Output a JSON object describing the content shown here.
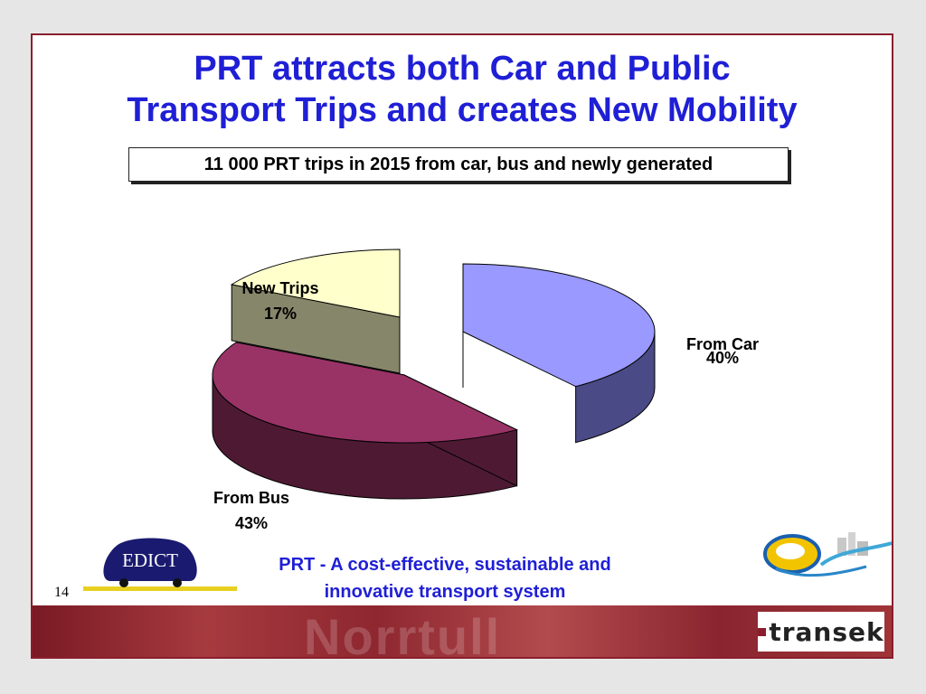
{
  "slide": {
    "title_line1": "PRT attracts both Car and Public",
    "title_line2": "Transport Trips and creates New Mobility",
    "subtitle": "11 000 PRT trips in 2015 from car, bus and newly generated",
    "footer_line1": "PRT - A cost-effective, sustainable and",
    "footer_line2": "innovative transport system",
    "slide_number": "14",
    "logo_left_text": "EDICT",
    "logo_right_brand": "transek",
    "banner_text": "Norrtull"
  },
  "colors": {
    "title": "#1f1fd6",
    "border": "#8b1e2c",
    "from_car_top": "#9999ff",
    "from_car_side": "#4a4a86",
    "from_bus_top": "#993366",
    "from_bus_side": "#4e1a33",
    "new_trips_top": "#ffffcc",
    "new_trips_side": "#86866a"
  },
  "chart_data": {
    "type": "pie",
    "style": "3d-exploded",
    "title": "11 000 PRT trips in 2015 from car, bus and newly generated",
    "slices": [
      {
        "name": "From Car",
        "value": 40,
        "label": "40%"
      },
      {
        "name": "From Bus",
        "value": 43,
        "label": "43%"
      },
      {
        "name": "New Trips",
        "value": 17,
        "label": "17%"
      }
    ]
  }
}
